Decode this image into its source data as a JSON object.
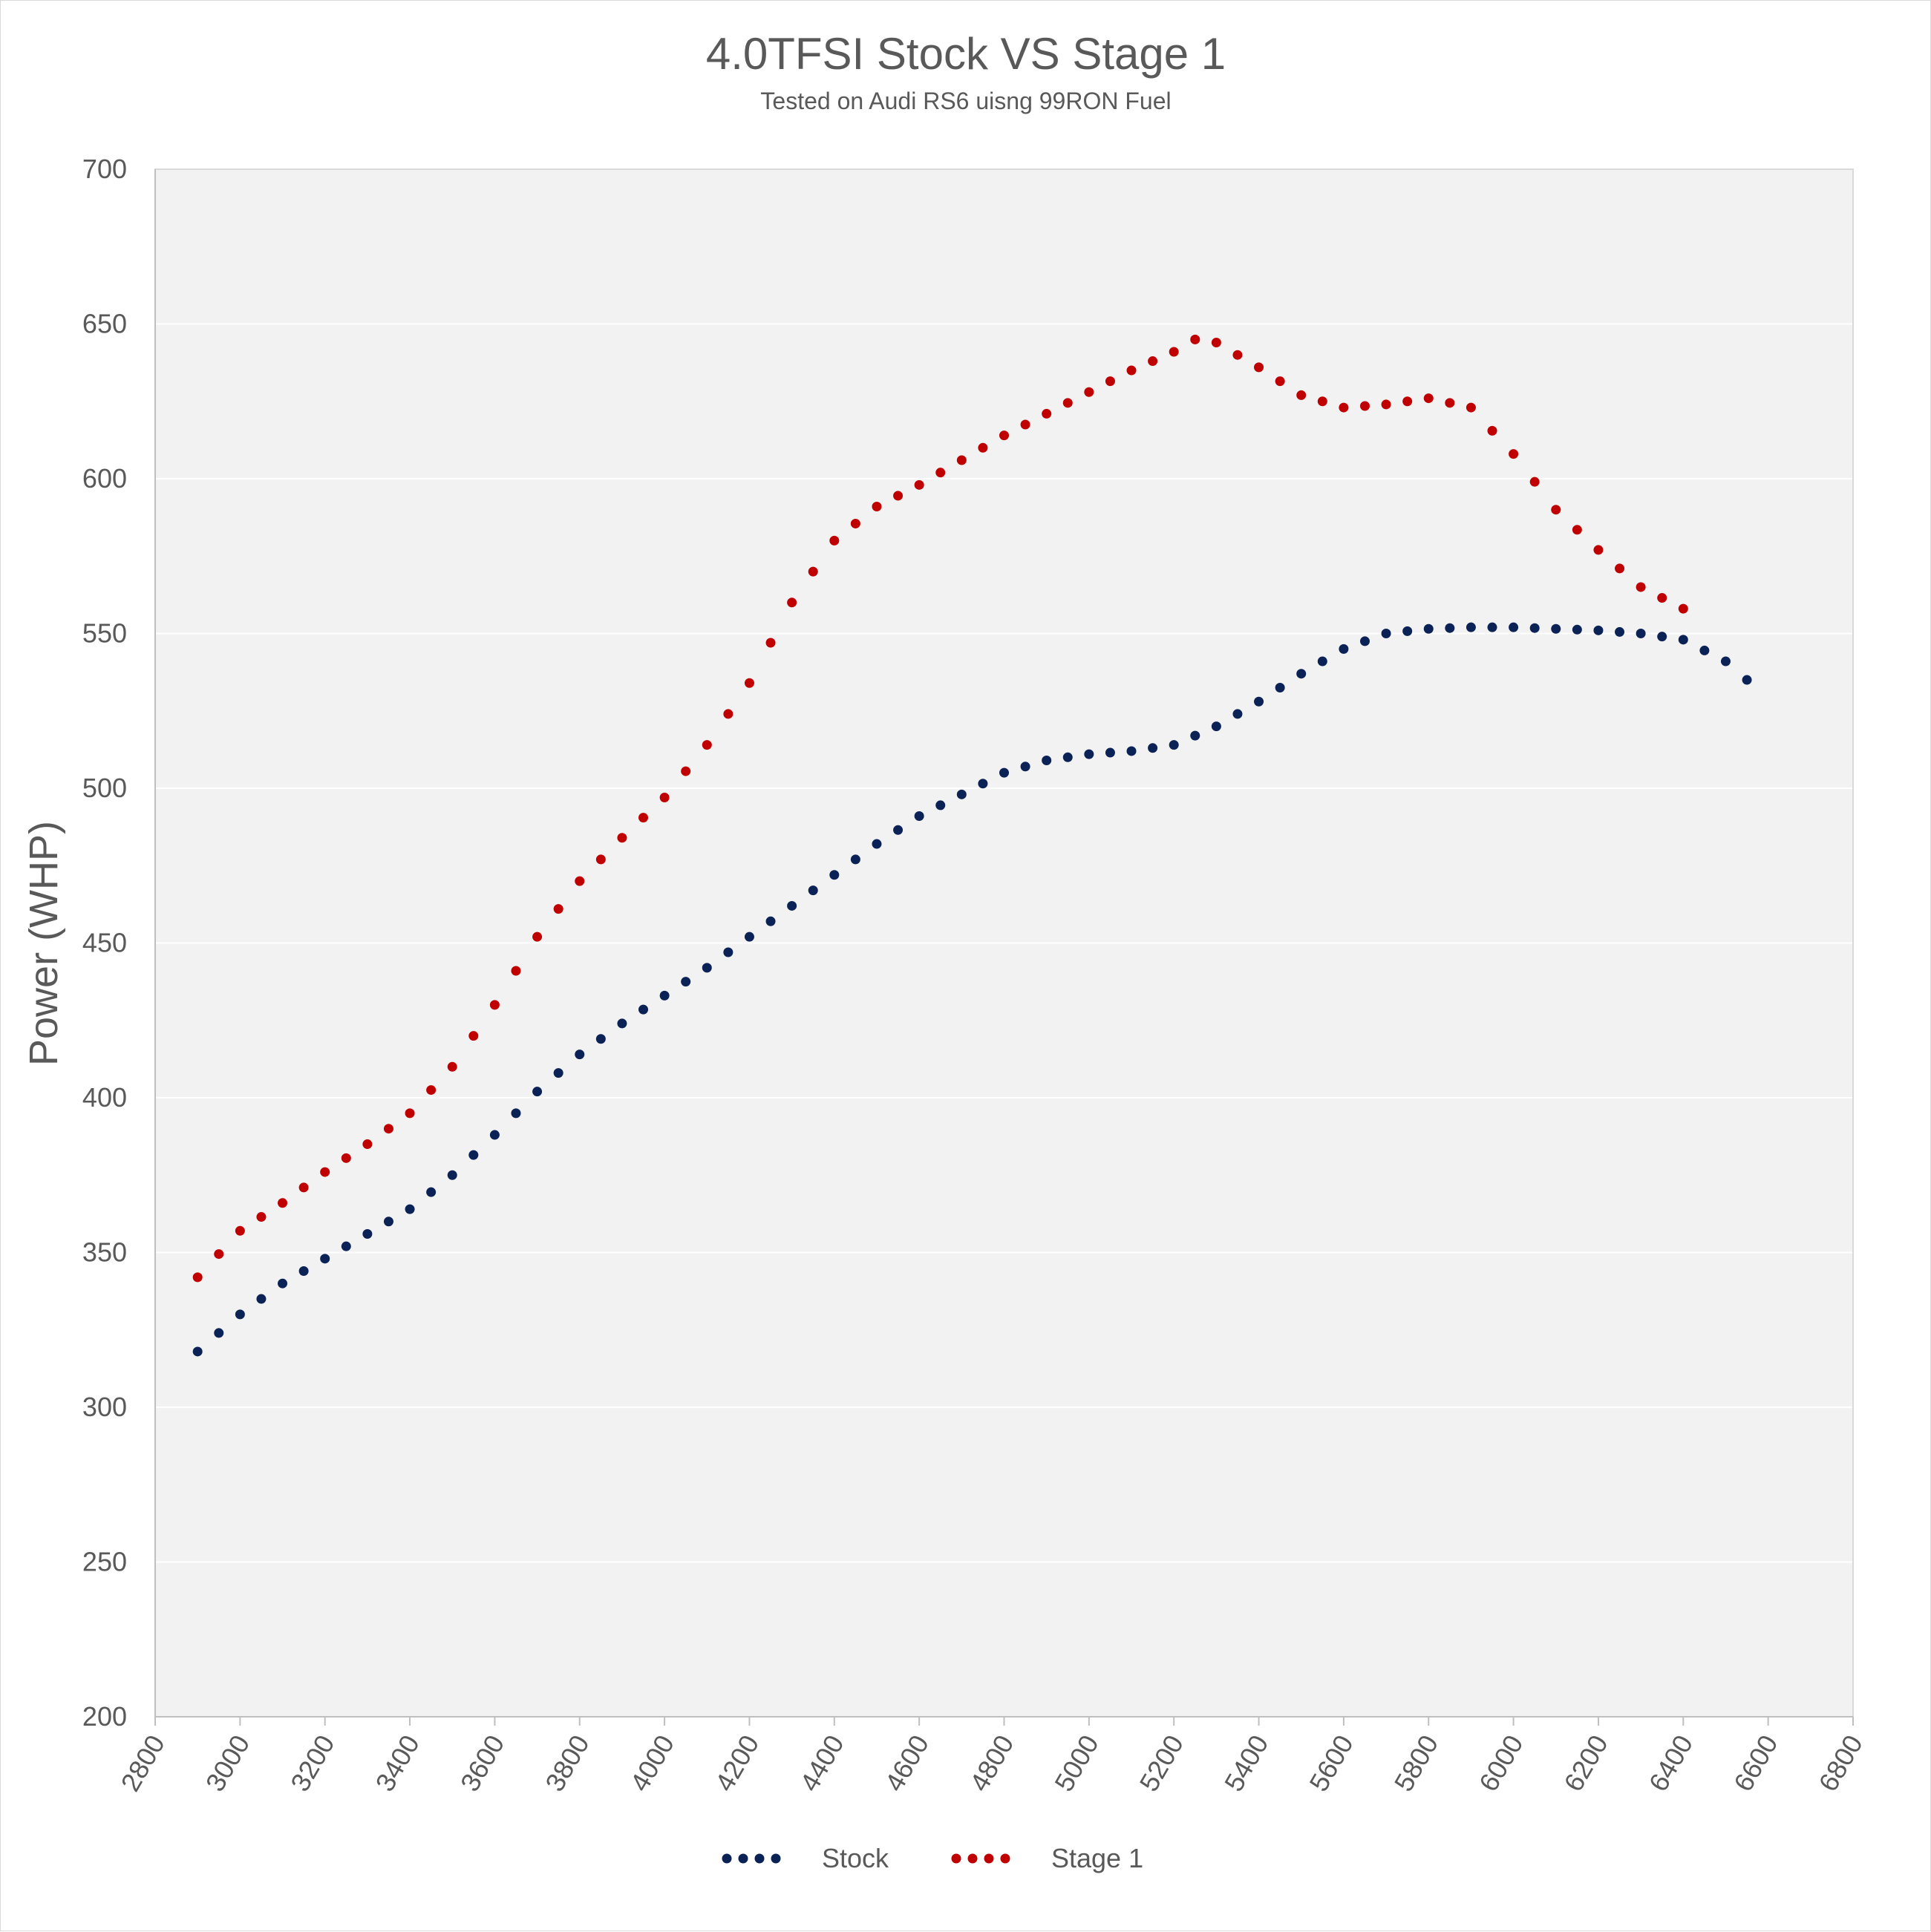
{
  "chart_data": {
    "type": "scatter",
    "title": "4.0TFSI Stock VS Stage 1",
    "subtitle": "Tested on Audi RS6 uisng 99RON Fuel",
    "xlabel": "",
    "ylabel": "Power (WHP)",
    "xlim": [
      2800,
      6800
    ],
    "ylim": [
      200,
      700
    ],
    "xticks": [
      "2800",
      "3000",
      "3200",
      "3400",
      "3600",
      "3800",
      "4000",
      "4200",
      "4400",
      "4600",
      "4800",
      "5000",
      "5200",
      "5400",
      "5600",
      "5800",
      "6000",
      "6200",
      "6400",
      "6600",
      "6800"
    ],
    "yticks": [
      "200",
      "250",
      "300",
      "350",
      "400",
      "450",
      "500",
      "550",
      "600",
      "650",
      "700"
    ],
    "grid": "horizontal",
    "legend_position": "bottom",
    "series": [
      {
        "name": "Stock",
        "color": "#0b2256",
        "points": [
          [
            2900,
            318
          ],
          [
            3000,
            330
          ],
          [
            3100,
            340
          ],
          [
            3200,
            348
          ],
          [
            3300,
            356
          ],
          [
            3400,
            364
          ],
          [
            3500,
            375
          ],
          [
            3600,
            388
          ],
          [
            3700,
            402
          ],
          [
            3800,
            414
          ],
          [
            3900,
            424
          ],
          [
            4000,
            433
          ],
          [
            4100,
            442
          ],
          [
            4200,
            452
          ],
          [
            4300,
            462
          ],
          [
            4400,
            472
          ],
          [
            4500,
            482
          ],
          [
            4600,
            491
          ],
          [
            4700,
            498
          ],
          [
            4800,
            505
          ],
          [
            4900,
            509
          ],
          [
            5000,
            511
          ],
          [
            5100,
            512
          ],
          [
            5200,
            514
          ],
          [
            5300,
            520
          ],
          [
            5400,
            528
          ],
          [
            5500,
            537
          ],
          [
            5600,
            545
          ],
          [
            5700,
            550
          ],
          [
            5800,
            551.5
          ],
          [
            5900,
            552
          ],
          [
            6000,
            552
          ],
          [
            6100,
            551.5
          ],
          [
            6200,
            551
          ],
          [
            6300,
            550
          ],
          [
            6400,
            548
          ],
          [
            6500,
            541
          ],
          [
            6550,
            535
          ]
        ]
      },
      {
        "name": "Stage 1",
        "color": "#c00000",
        "points": [
          [
            2900,
            342
          ],
          [
            3000,
            357
          ],
          [
            3100,
            366
          ],
          [
            3200,
            376
          ],
          [
            3300,
            385
          ],
          [
            3400,
            395
          ],
          [
            3500,
            410
          ],
          [
            3600,
            430
          ],
          [
            3700,
            452
          ],
          [
            3800,
            470
          ],
          [
            3900,
            484
          ],
          [
            4000,
            497
          ],
          [
            4100,
            514
          ],
          [
            4200,
            534
          ],
          [
            4300,
            560
          ],
          [
            4400,
            580
          ],
          [
            4500,
            591
          ],
          [
            4600,
            598
          ],
          [
            4700,
            606
          ],
          [
            4800,
            614
          ],
          [
            4900,
            621
          ],
          [
            5000,
            628
          ],
          [
            5100,
            635
          ],
          [
            5200,
            641
          ],
          [
            5250,
            645
          ],
          [
            5300,
            644
          ],
          [
            5400,
            636
          ],
          [
            5500,
            627
          ],
          [
            5600,
            623
          ],
          [
            5700,
            624
          ],
          [
            5800,
            626
          ],
          [
            5900,
            623
          ],
          [
            6000,
            608
          ],
          [
            6100,
            590
          ],
          [
            6200,
            577
          ],
          [
            6300,
            565
          ],
          [
            6400,
            558
          ]
        ]
      }
    ]
  }
}
